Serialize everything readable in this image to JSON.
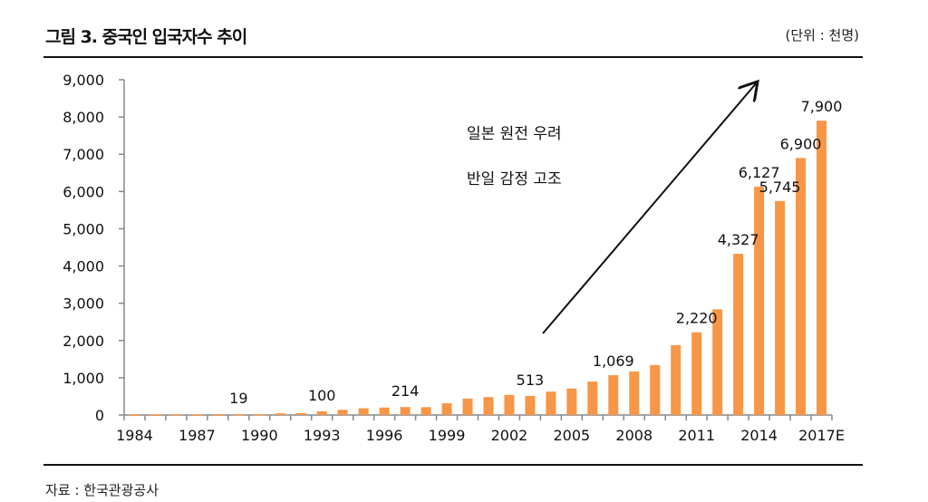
{
  "header": {
    "title": "그림 3. 중국인 입국자수 추이",
    "unit": "(단위 : 천명)"
  },
  "footer": {
    "source": "자료 : 한국관광공사"
  },
  "chart_data": {
    "type": "bar",
    "title": "",
    "xlabel": "",
    "ylabel": "",
    "ylim": [
      0,
      9000
    ],
    "yticks": [
      0,
      1000,
      2000,
      3000,
      4000,
      5000,
      6000,
      7000,
      8000,
      9000
    ],
    "ytick_labels": [
      "0",
      "1,000",
      "2,000",
      "3,000",
      "4,000",
      "5,000",
      "6,000",
      "7,000",
      "8,000",
      "9,000"
    ],
    "categories": [
      "1984",
      "1985",
      "1986",
      "1987",
      "1988",
      "1989",
      "1990",
      "1991",
      "1992",
      "1993",
      "1994",
      "1995",
      "1996",
      "1997",
      "1998",
      "1999",
      "2000",
      "2001",
      "2002",
      "2003",
      "2004",
      "2005",
      "2006",
      "2007",
      "2008",
      "2009",
      "2010",
      "2011",
      "2012",
      "2013",
      "2014",
      "2015",
      "2016",
      "2017E"
    ],
    "xtick_labels": [
      "1984",
      "1987",
      "1990",
      "1993",
      "1996",
      "1999",
      "2002",
      "2005",
      "2008",
      "2011",
      "2014",
      "2017E"
    ],
    "values": [
      10,
      11,
      12,
      13,
      15,
      19,
      20,
      45,
      50,
      100,
      140,
      180,
      200,
      214,
      210,
      316,
      443,
      482,
      539,
      513,
      627,
      710,
      897,
      1069,
      1168,
      1342,
      1875,
      2220,
      2837,
      4327,
      6127,
      5745,
      6900,
      7900
    ],
    "data_labels": {
      "1989": "19",
      "1993": "100",
      "1997": "214",
      "2003": "513",
      "2007": "1,069",
      "2011": "2,220",
      "2013": "4,327",
      "2014": "6,127",
      "2015": "5,745",
      "2016": "6,900",
      "2017E": "7,900"
    },
    "bar_color": "#f79646",
    "grid": false,
    "legend": "none",
    "annotations": [
      "일본 원전 우려",
      "반일 감정 고조"
    ]
  }
}
